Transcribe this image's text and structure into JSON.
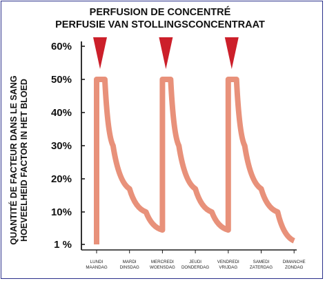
{
  "chart_data": {
    "type": "line",
    "title": "PERFUSION DE CONCENTRÉ",
    "subtitle": "PERFUSIE VAN STOLLINGSCONCENTRAAT",
    "ylabel_fr": "QUANTITÉ DE FACTEUR DANS LE SANG",
    "ylabel_nl": "HOEVEELHEID FACTOR IN HET BLOED",
    "y_ticks": [
      "60%",
      "50%",
      "40%",
      "30%",
      "20%",
      "10%",
      "1 %"
    ],
    "y_values": [
      60,
      50,
      40,
      30,
      20,
      10,
      1
    ],
    "ylim": [
      1,
      60
    ],
    "x_categories": [
      {
        "fr": "LUNDI",
        "nl": "MAANDAG"
      },
      {
        "fr": "MARDI",
        "nl": "DINSDAG"
      },
      {
        "fr": "MERCREDI",
        "nl": "WOENSDAG"
      },
      {
        "fr": "JEUDI",
        "nl": "DONDERDAG"
      },
      {
        "fr": "VENDREDI",
        "nl": "VRIJDAG"
      },
      {
        "fr": "SAMEDI",
        "nl": "ZATERDAG"
      },
      {
        "fr": "DIMANCHE",
        "nl": "ZONDAG"
      }
    ],
    "infusion_days": [
      0,
      2,
      4
    ],
    "series": [
      {
        "color": "#e8917a",
        "points": [
          [
            0,
            1
          ],
          [
            0,
            50
          ],
          [
            0.25,
            50
          ],
          [
            0.5,
            30
          ],
          [
            1,
            17
          ],
          [
            1.5,
            10
          ],
          [
            2,
            5
          ],
          [
            2,
            50
          ],
          [
            2.25,
            50
          ],
          [
            2.5,
            30
          ],
          [
            3,
            17
          ],
          [
            3.5,
            10
          ],
          [
            4,
            5
          ],
          [
            4,
            50
          ],
          [
            4.25,
            50
          ],
          [
            4.5,
            30
          ],
          [
            5,
            17
          ],
          [
            5.5,
            10
          ],
          [
            6,
            2
          ]
        ]
      }
    ],
    "marker_color": "#cc1f2a",
    "grid": false
  }
}
